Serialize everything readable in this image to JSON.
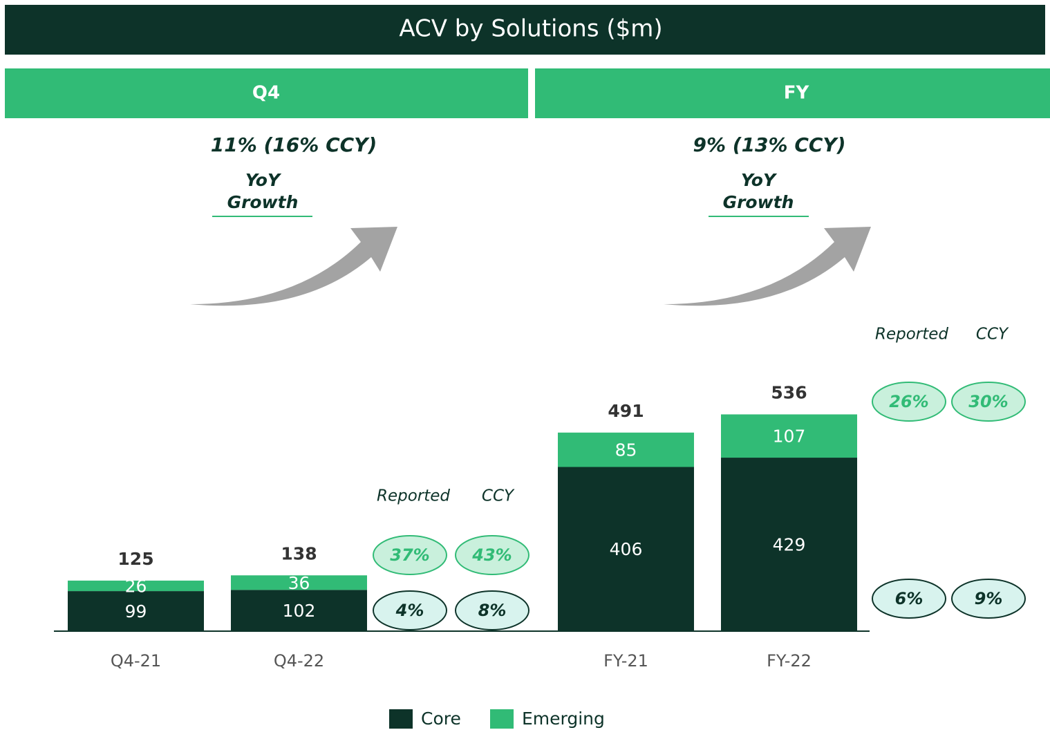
{
  "title": "ACV by Solutions ($m)",
  "panels": [
    {
      "header": "Q4",
      "growth": "11% (16% CCY)",
      "growth_label": [
        "YoY",
        "Growth"
      ],
      "columns": [
        "Reported",
        "CCY"
      ],
      "emerging_growth": [
        "37%",
        "43%"
      ],
      "core_growth": [
        "4%",
        "8%"
      ]
    },
    {
      "header": "FY",
      "growth": "9% (13% CCY)",
      "growth_label": [
        "YoY",
        "Growth"
      ],
      "columns": [
        "Reported",
        "CCY"
      ],
      "emerging_growth": [
        "26%",
        "30%"
      ],
      "core_growth": [
        "6%",
        "9%"
      ]
    }
  ],
  "chart_data": {
    "type": "bar",
    "stacked": true,
    "categories": [
      "Q4-21",
      "Q4-22",
      "FY-21",
      "FY-22"
    ],
    "series": [
      {
        "name": "Core",
        "color": "#0d3329",
        "values": [
          99,
          102,
          406,
          429
        ]
      },
      {
        "name": "Emerging",
        "color": "#31bb76",
        "values": [
          26,
          36,
          85,
          107
        ]
      }
    ],
    "totals": [
      125,
      138,
      491,
      536
    ]
  }
}
